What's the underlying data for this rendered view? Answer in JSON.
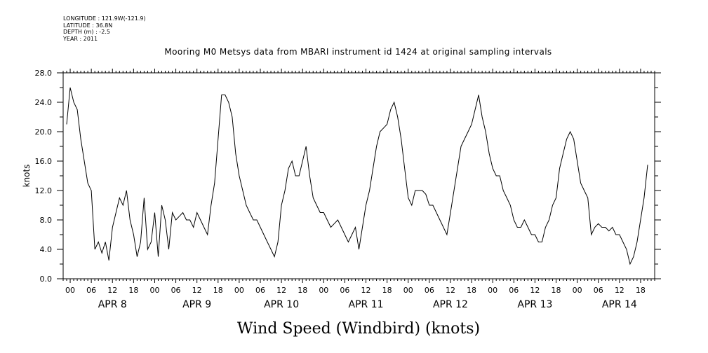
{
  "header": {
    "longitude": "LONGITUDE : 121.9W(-121.9)",
    "latitude": "LATITUDE : 36.8N",
    "depth": "DEPTH (m) : -2.5",
    "year": "YEAR : 2011",
    "title": "Mooring M0 Metsys data from MBARI instrument id 1424 at original sampling intervals"
  },
  "chart_data": {
    "type": "line",
    "title": "Mooring M0 Metsys data from MBARI instrument id 1424 at original sampling intervals",
    "xlabel": "Wind Speed (Windbird) (knots)",
    "ylabel": "knots",
    "ylim": [
      0,
      28
    ],
    "y_ticks": [
      "0.0",
      "4.0",
      "8.0",
      "12.0",
      "16.0",
      "20.0",
      "24.0",
      "28.0"
    ],
    "x_unit": "hours since APR 8 00:00",
    "xlim": [
      -2,
      166
    ],
    "x_tick_labels": [
      "00",
      "06",
      "12",
      "18"
    ],
    "day_labels": [
      "APR  8",
      "APR  9",
      "APR 10",
      "APR 11",
      "APR 12",
      "APR 13",
      "APR 14"
    ],
    "line_color": "#000000",
    "x": [
      -1,
      0,
      1,
      2,
      3,
      4,
      5,
      6,
      7,
      8,
      9,
      10,
      11,
      12,
      13,
      14,
      15,
      16,
      17,
      18,
      19,
      20,
      21,
      22,
      23,
      24,
      25,
      26,
      27,
      28,
      29,
      30,
      31,
      32,
      33,
      34,
      35,
      36,
      37,
      38,
      39,
      40,
      41,
      42,
      43,
      44,
      45,
      46,
      47,
      48,
      49,
      50,
      51,
      52,
      53,
      54,
      55,
      56,
      57,
      58,
      59,
      60,
      61,
      62,
      63,
      64,
      65,
      66,
      67,
      68,
      69,
      70,
      71,
      72,
      73,
      74,
      75,
      76,
      77,
      78,
      79,
      80,
      81,
      82,
      83,
      84,
      85,
      86,
      87,
      88,
      89,
      90,
      91,
      92,
      93,
      94,
      95,
      96,
      97,
      98,
      99,
      100,
      101,
      102,
      103,
      104,
      105,
      106,
      107,
      108,
      109,
      110,
      111,
      112,
      113,
      114,
      115,
      116,
      117,
      118,
      119,
      120,
      121,
      122,
      123,
      124,
      125,
      126,
      127,
      128,
      129,
      130,
      131,
      132,
      133,
      134,
      135,
      136,
      137,
      138,
      139,
      140,
      141,
      142,
      143,
      144,
      145,
      146,
      147,
      148,
      149,
      150,
      151,
      152,
      153,
      154,
      155,
      156,
      157,
      158,
      159,
      160,
      161,
      162,
      163,
      164
    ],
    "y": [
      21,
      26,
      24,
      23,
      19,
      16,
      13,
      12,
      4,
      5,
      3.5,
      5,
      2.5,
      7,
      9,
      11,
      10,
      12,
      8,
      6,
      3,
      5,
      11,
      4,
      5,
      9,
      3,
      10,
      8,
      4,
      9,
      8,
      8.5,
      9,
      8,
      8,
      7,
      9,
      8,
      7,
      6,
      10,
      13,
      19,
      25,
      25,
      24,
      22,
      17,
      14,
      12,
      10,
      9,
      8,
      8,
      7,
      6,
      5,
      4,
      3,
      5,
      10,
      12,
      15,
      16,
      14,
      14,
      16,
      18,
      14,
      11,
      10,
      9,
      9,
      8,
      7,
      7.5,
      8,
      7,
      6,
      5,
      6,
      7,
      4,
      7,
      10,
      12,
      15,
      18,
      20,
      20.5,
      21,
      23,
      24,
      22,
      19,
      15,
      11,
      10,
      12,
      12,
      12,
      11.5,
      10,
      10,
      9,
      8,
      7,
      6,
      9,
      12,
      15,
      18,
      19,
      20,
      21,
      23,
      25,
      22,
      20,
      17,
      15,
      14,
      14,
      12,
      11,
      10,
      8,
      7,
      7,
      8,
      7,
      6,
      6,
      5,
      5,
      7,
      8,
      10,
      11,
      15,
      17,
      19,
      20,
      19,
      16,
      13,
      12,
      11,
      6,
      7,
      7.5,
      7,
      7,
      6.5,
      7,
      6,
      6,
      5,
      4,
      2,
      3,
      5,
      8,
      11,
      15.5
    ]
  }
}
